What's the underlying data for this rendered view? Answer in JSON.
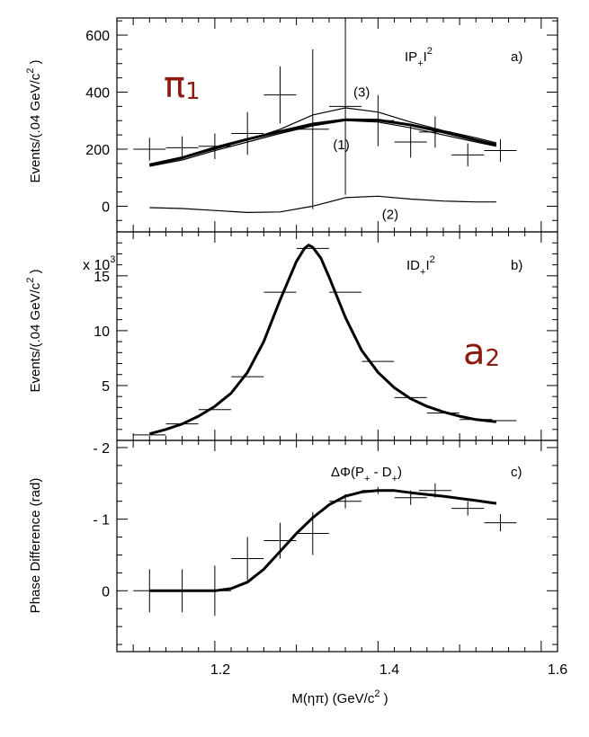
{
  "figure": {
    "xlabel": "M(ηπ) (GeV/c",
    "xlabel_sup": "2",
    "xlabel_close": " )",
    "x_ticks": [
      "1.2",
      "1.4",
      "1.6"
    ],
    "overlay_pi": "π",
    "overlay_pi_sub": "1",
    "overlay_a": "a",
    "overlay_a_sub": "2",
    "colors": {
      "ink": "#000000",
      "overlay": "#8b1a0f"
    }
  },
  "chart_data": [
    {
      "type": "scatter",
      "panel": "a)",
      "label_main": "IP",
      "label_sub": "+",
      "label_end": "I",
      "label_sup": "2",
      "ylabel": "Events/(.04 GeV/c",
      "ylabel_sup": "2",
      "ylabel_close": " )",
      "xlim": [
        1.08,
        1.62
      ],
      "ylim": [
        -90,
        660
      ],
      "y_ticks": [
        "0",
        "200",
        "400",
        "600"
      ],
      "points": [
        {
          "x": 1.12,
          "y": 200,
          "ey": 40
        },
        {
          "x": 1.16,
          "y": 205,
          "ey": 40
        },
        {
          "x": 1.2,
          "y": 210,
          "ey": 45
        },
        {
          "x": 1.24,
          "y": 255,
          "ey": 75
        },
        {
          "x": 1.28,
          "y": 390,
          "ey": 100
        },
        {
          "x": 1.32,
          "y": 270,
          "ey": 280
        },
        {
          "x": 1.36,
          "y": 350,
          "ey": 310
        },
        {
          "x": 1.4,
          "y": 300,
          "ey": 90
        },
        {
          "x": 1.44,
          "y": 225,
          "ey": 55
        },
        {
          "x": 1.47,
          "y": 260,
          "ey": 55
        },
        {
          "x": 1.51,
          "y": 180,
          "ey": 40
        },
        {
          "x": 1.55,
          "y": 195,
          "ey": 40
        }
      ],
      "curves": [
        {
          "name": "total",
          "x": [
            1.12,
            1.16,
            1.2,
            1.24,
            1.28,
            1.32,
            1.36,
            1.4,
            1.44,
            1.48,
            1.52,
            1.545
          ],
          "y": [
            145,
            170,
            205,
            235,
            262,
            288,
            303,
            302,
            285,
            260,
            232,
            215
          ]
        },
        {
          "name": "(1)",
          "x": [
            1.12,
            1.16,
            1.2,
            1.24,
            1.28,
            1.32,
            1.36,
            1.4,
            1.44,
            1.48,
            1.52,
            1.545
          ],
          "y": [
            140,
            162,
            195,
            225,
            255,
            282,
            300,
            295,
            275,
            250,
            225,
            210
          ]
        },
        {
          "name": "(3)",
          "x": [
            1.12,
            1.16,
            1.2,
            1.24,
            1.28,
            1.32,
            1.36,
            1.4,
            1.44,
            1.48,
            1.52,
            1.545
          ],
          "y": [
            145,
            168,
            200,
            232,
            270,
            320,
            345,
            330,
            295,
            265,
            240,
            222
          ]
        },
        {
          "name": "(2)",
          "x": [
            1.12,
            1.16,
            1.2,
            1.24,
            1.28,
            1.32,
            1.36,
            1.4,
            1.44,
            1.48,
            1.52,
            1.545
          ],
          "y": [
            -5,
            -8,
            -15,
            -22,
            -20,
            0,
            30,
            35,
            25,
            18,
            15,
            15
          ]
        }
      ],
      "annotations": [
        {
          "text": "(3)",
          "x": 1.38,
          "y": 385
        },
        {
          "text": "(1)",
          "x": 1.355,
          "y": 200
        },
        {
          "text": "(2)",
          "x": 1.415,
          "y": -45
        }
      ]
    },
    {
      "type": "scatter",
      "panel": "b)",
      "label_main": "ID",
      "label_sub": "+",
      "label_end": "I",
      "label_sup": "2",
      "ylabel": "Events/(.04 GeV/c",
      "ylabel_sup": "2",
      "ylabel_close": " )",
      "y_multiplier": "x 10",
      "y_multiplier_sup": "3",
      "xlim": [
        1.08,
        1.62
      ],
      "ylim": [
        0,
        19
      ],
      "y_ticks": [
        "5",
        "10",
        "15"
      ],
      "points": [
        {
          "x": 1.12,
          "y": 0.5,
          "ex": 0.02
        },
        {
          "x": 1.16,
          "y": 1.5,
          "ex": 0.02
        },
        {
          "x": 1.2,
          "y": 2.8,
          "ex": 0.02
        },
        {
          "x": 1.24,
          "y": 5.8,
          "ex": 0.02
        },
        {
          "x": 1.28,
          "y": 13.5,
          "ex": 0.02
        },
        {
          "x": 1.32,
          "y": 17.5,
          "ex": 0.02
        },
        {
          "x": 1.36,
          "y": 13.5,
          "ex": 0.02
        },
        {
          "x": 1.4,
          "y": 7.2,
          "ex": 0.02
        },
        {
          "x": 1.44,
          "y": 3.9,
          "ex": 0.02
        },
        {
          "x": 1.48,
          "y": 2.5,
          "ex": 0.02
        },
        {
          "x": 1.52,
          "y": 1.9,
          "ex": 0.02
        },
        {
          "x": 1.55,
          "y": 1.8,
          "ex": 0.02
        }
      ],
      "curves": [
        {
          "name": "fit",
          "x": [
            1.12,
            1.14,
            1.16,
            1.18,
            1.2,
            1.22,
            1.24,
            1.26,
            1.28,
            1.3,
            1.31,
            1.315,
            1.32,
            1.33,
            1.34,
            1.36,
            1.38,
            1.4,
            1.42,
            1.44,
            1.46,
            1.48,
            1.5,
            1.52,
            1.545
          ],
          "y": [
            0.6,
            1.0,
            1.5,
            2.2,
            3.1,
            4.3,
            6.2,
            9.0,
            12.8,
            16.3,
            17.5,
            17.8,
            17.6,
            16.6,
            14.9,
            11.2,
            8.2,
            6.2,
            4.8,
            3.8,
            3.1,
            2.6,
            2.2,
            1.9,
            1.7
          ]
        }
      ]
    },
    {
      "type": "scatter",
      "panel": "c)",
      "label_main": "ΔΦ(P",
      "label_sub": "+",
      "label_mid": " - D",
      "label_sub2": "+",
      "label_end": ")",
      "ylabel": "Phase Difference  (rad)",
      "xlim": [
        1.08,
        1.62
      ],
      "ylim": [
        0.85,
        -2.1
      ],
      "y_ticks": [
        "0",
        "- 1",
        "- 2"
      ],
      "points": [
        {
          "x": 1.12,
          "y": 0.0,
          "ey": 0.3
        },
        {
          "x": 1.16,
          "y": 0.0,
          "ey": 0.3
        },
        {
          "x": 1.2,
          "y": 0.0,
          "ey": 0.35
        },
        {
          "x": 1.24,
          "y": -0.45,
          "ey": 0.3
        },
        {
          "x": 1.28,
          "y": -0.7,
          "ey": 0.25
        },
        {
          "x": 1.32,
          "y": -0.8,
          "ey": 0.3
        },
        {
          "x": 1.36,
          "y": -1.25,
          "ey": 0.1
        },
        {
          "x": 1.4,
          "y": -1.4,
          "ey": 0.05
        },
        {
          "x": 1.44,
          "y": -1.3,
          "ey": 0.1
        },
        {
          "x": 1.47,
          "y": -1.4,
          "ey": 0.1
        },
        {
          "x": 1.51,
          "y": -1.15,
          "ey": 0.1
        },
        {
          "x": 1.55,
          "y": -0.95,
          "ey": 0.12
        }
      ],
      "curves": [
        {
          "name": "fit",
          "x": [
            1.12,
            1.16,
            1.2,
            1.22,
            1.24,
            1.26,
            1.28,
            1.3,
            1.32,
            1.34,
            1.36,
            1.38,
            1.4,
            1.42,
            1.44,
            1.48,
            1.52,
            1.545
          ],
          "y": [
            0.0,
            0.0,
            0.0,
            -0.03,
            -0.12,
            -0.3,
            -0.55,
            -0.8,
            -1.02,
            -1.2,
            -1.32,
            -1.38,
            -1.4,
            -1.4,
            -1.37,
            -1.32,
            -1.26,
            -1.22
          ]
        }
      ]
    }
  ]
}
